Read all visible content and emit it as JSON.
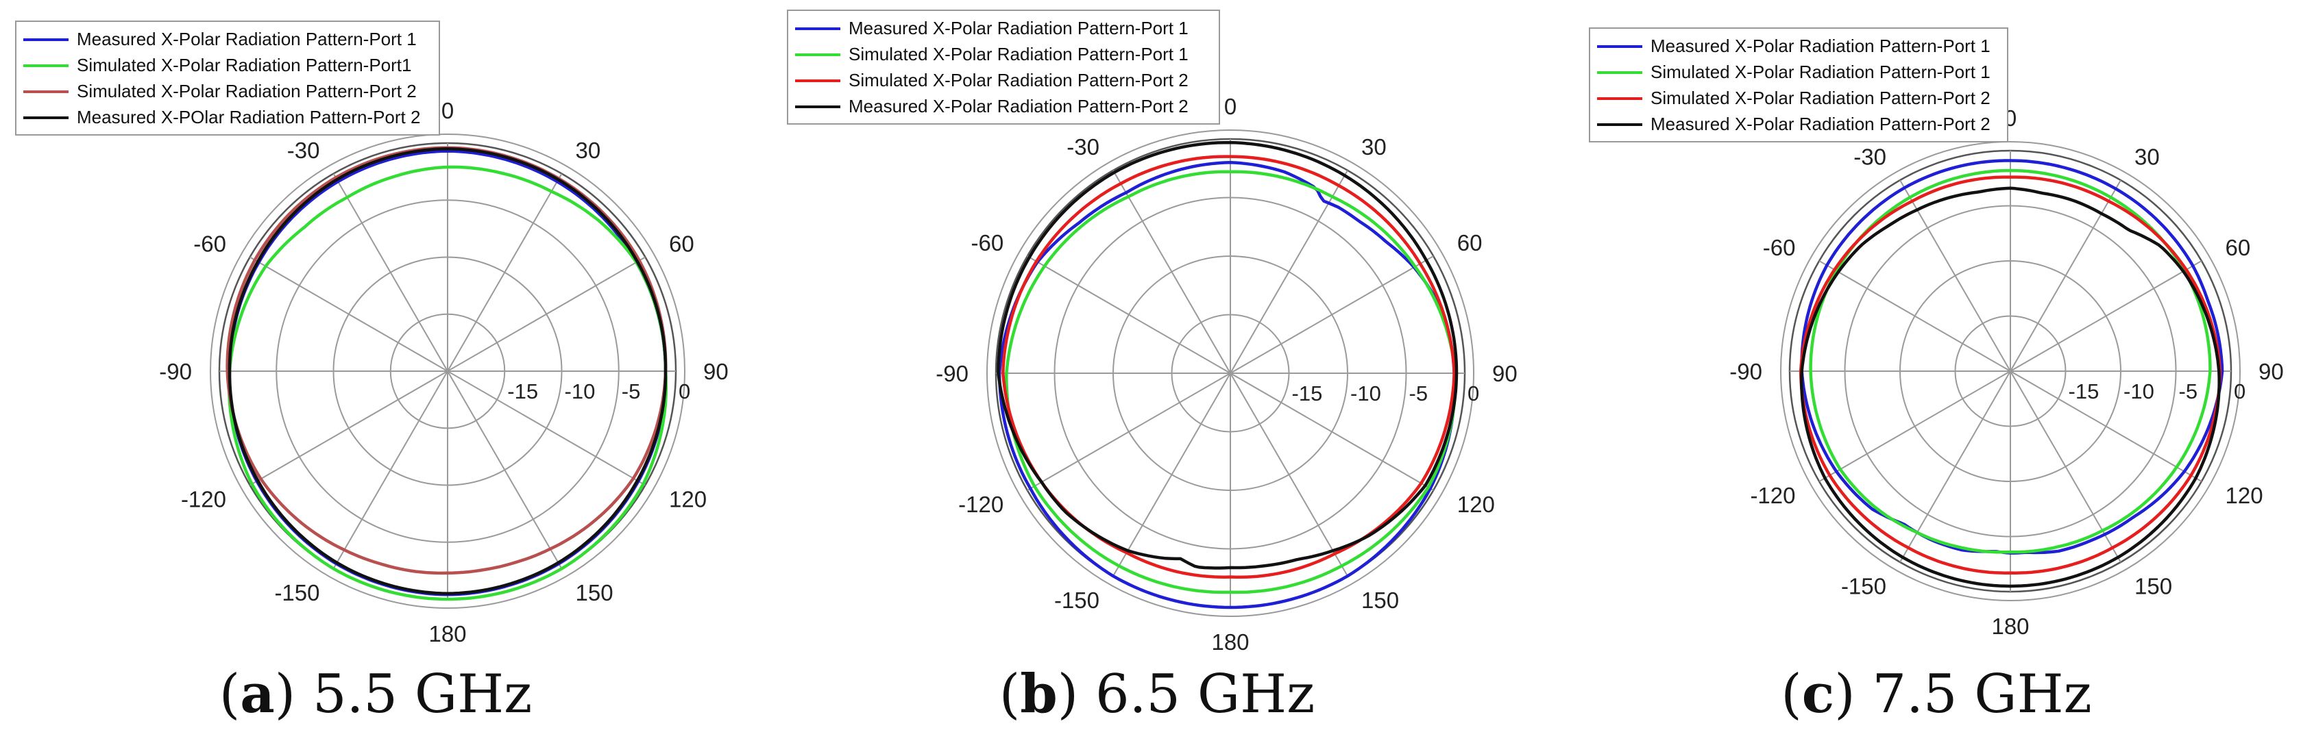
{
  "colors": {
    "blue": "#1f1fd6",
    "green": "#33dd33",
    "red": "#e61e1e",
    "black": "#111111",
    "brown": "#b85050",
    "grid": "#9a9a9a"
  },
  "chart_data": [
    {
      "type": "polar-line",
      "caption": {
        "letter": "a",
        "text": "5.5 GHz"
      },
      "angle_ticks": [
        "0",
        "30",
        "60",
        "90",
        "120",
        "150",
        "180",
        "-150",
        "-120",
        "-90",
        "-60",
        "-30"
      ],
      "radial_ticks": [
        "-15",
        "-10",
        "-5",
        "0"
      ],
      "rlim": [
        -20,
        0
      ],
      "legend": [
        {
          "name": "Measured X-Polar Radiation Pattern-Port 1",
          "color": "blue"
        },
        {
          "name": "Simulated X-Polar Radiation Pattern-Port1",
          "color": "green"
        },
        {
          "name": "Simulated X-Polar Radiation Pattern-Port 2",
          "color": "brown"
        },
        {
          "name": "Measured X-POlar Radiation Pattern-Port 2",
          "color": "black"
        }
      ],
      "series": [
        {
          "name": "Measured X-Polar Radiation Pattern-Port 1",
          "color": "blue",
          "angles": [
            0,
            30,
            60,
            90,
            120,
            150,
            180,
            -150,
            -120,
            -90,
            -60,
            -30
          ],
          "values": [
            -0.7,
            -0.8,
            -0.9,
            -0.9,
            -0.7,
            -0.5,
            -0.4,
            -0.5,
            -0.7,
            -0.9,
            -0.9,
            -0.8
          ]
        },
        {
          "name": "Simulated X-Polar Radiation Pattern-Port1",
          "color": "green",
          "angles": [
            0,
            15,
            30,
            45,
            60,
            90,
            120,
            150,
            180,
            -150,
            -120,
            -90,
            -60,
            -45,
            -30,
            -15
          ],
          "values": [
            -2.1,
            -2.0,
            -1.8,
            -1.3,
            -0.9,
            -0.9,
            -0.2,
            0,
            0,
            0,
            -0.2,
            -0.9,
            -1.6,
            -2.2,
            -2.4,
            -2.3
          ]
        },
        {
          "name": "Simulated X-Polar Radiation Pattern-Port 2",
          "color": "brown",
          "angles": [
            0,
            30,
            60,
            90,
            120,
            150,
            160,
            170,
            180,
            -170,
            -160,
            -150,
            -120,
            -90,
            -60,
            -30
          ],
          "values": [
            -0.4,
            -0.5,
            -0.6,
            -0.9,
            -1.2,
            -2.0,
            -2.2,
            -2.3,
            -2.3,
            -2.2,
            -2.1,
            -1.9,
            -1.1,
            -0.7,
            -0.5,
            -0.4
          ]
        },
        {
          "name": "Measured X-POlar Radiation Pattern-Port 2",
          "color": "black",
          "angles": [
            0,
            30,
            60,
            90,
            120,
            150,
            180,
            -150,
            -120,
            -90,
            -60,
            -30
          ],
          "values": [
            -0.5,
            -0.6,
            -0.8,
            -0.9,
            -0.8,
            -0.6,
            -0.5,
            -0.6,
            -0.8,
            -0.9,
            -0.8,
            -0.6
          ]
        }
      ]
    },
    {
      "type": "polar-line",
      "caption": {
        "letter": "b",
        "text": "6.5 GHz"
      },
      "angle_ticks": [
        "0",
        "30",
        "60",
        "90",
        "120",
        "150",
        "180",
        "-150",
        "-120",
        "-90",
        "-60",
        "-30"
      ],
      "radial_ticks": [
        "-15",
        "-10",
        "-5",
        "0"
      ],
      "rlim": [
        -20,
        0
      ],
      "legend": [
        {
          "name": "Measured X-Polar Radiation Pattern-Port 1",
          "color": "blue"
        },
        {
          "name": "Simulated X-Polar Radiation Pattern-Port 1",
          "color": "green"
        },
        {
          "name": "Simulated X-Polar Radiation Pattern-Port 2",
          "color": "red"
        },
        {
          "name": "Measured X-Polar Radiation Pattern-Port 2",
          "color": "black"
        }
      ],
      "series": [
        {
          "name": "Measured X-Polar Radiation Pattern-Port 1",
          "color": "blue",
          "angles": [
            0,
            15,
            25,
            28,
            33,
            40,
            50,
            60,
            75,
            90,
            120,
            150,
            180,
            -150,
            -120,
            -90,
            -60,
            -45,
            -30,
            -15
          ],
          "values": [
            -2.0,
            -2.2,
            -2.6,
            -3.3,
            -3.1,
            -3.0,
            -2.6,
            -1.9,
            -1.1,
            -0.9,
            -0.3,
            0,
            0,
            0,
            -0.3,
            -0.3,
            -1.0,
            -1.8,
            -2.2,
            -2.1
          ]
        },
        {
          "name": "Simulated X-Polar Radiation Pattern-Port 1",
          "color": "green",
          "angles": [
            0,
            30,
            60,
            90,
            120,
            150,
            180,
            -150,
            -120,
            -90,
            -60,
            -30
          ],
          "values": [
            -2.8,
            -2.6,
            -1.8,
            -0.8,
            -0.5,
            -1.0,
            -1.3,
            -1.0,
            -0.7,
            -0.9,
            -1.7,
            -2.6
          ]
        },
        {
          "name": "Simulated X-Polar Radiation Pattern-Port 2",
          "color": "red",
          "angles": [
            0,
            30,
            60,
            90,
            120,
            150,
            180,
            -150,
            -120,
            -90,
            -60,
            -30
          ],
          "values": [
            -1.5,
            -1.5,
            -1.3,
            -0.9,
            -1.2,
            -2.2,
            -2.6,
            -2.3,
            -1.4,
            -0.6,
            -0.9,
            -1.3
          ]
        },
        {
          "name": "Measured X-Polar Radiation Pattern-Port 2",
          "color": "black",
          "angles": [
            0,
            30,
            60,
            90,
            120,
            140,
            150,
            160,
            170,
            180,
            -170,
            -165,
            -160,
            -150,
            -130,
            -120,
            -90,
            -60,
            -30
          ],
          "values": [
            -0.3,
            -0.5,
            -0.7,
            -0.7,
            -0.8,
            -1.8,
            -2.5,
            -3.1,
            -3.3,
            -3.4,
            -3.2,
            -3.6,
            -3.2,
            -2.5,
            -1.6,
            -1.4,
            -0.2,
            -0.2,
            -0.2
          ]
        }
      ]
    },
    {
      "type": "polar-line",
      "caption": {
        "letter": "c",
        "text": "7.5 GHz"
      },
      "angle_ticks": [
        "0",
        "30",
        "60",
        "90",
        "120",
        "150",
        "180",
        "-150",
        "-120",
        "-90",
        "-60",
        "-30"
      ],
      "radial_ticks": [
        "-15",
        "-10",
        "-5",
        "0"
      ],
      "rlim": [
        -20,
        0
      ],
      "legend": [
        {
          "name": "Measured X-Polar Radiation Pattern-Port 1",
          "color": "blue"
        },
        {
          "name": "Simulated X-Polar Radiation Pattern-Port 1",
          "color": "green"
        },
        {
          "name": "Simulated X-Polar Radiation Pattern-Port 2",
          "color": "red"
        },
        {
          "name": "Measured X-Polar Radiation Pattern-Port 2",
          "color": "black"
        }
      ],
      "series": [
        {
          "name": "Measured X-Polar Radiation Pattern-Port 1",
          "color": "blue",
          "angles": [
            0,
            30,
            60,
            70,
            80,
            90,
            120,
            140,
            155,
            165,
            175,
            180,
            -175,
            -165,
            -155,
            -145,
            -135,
            -120,
            -90,
            -60,
            -30
          ],
          "values": [
            -0.9,
            -0.9,
            -0.9,
            -1.0,
            -0.9,
            -0.8,
            -1.8,
            -2.7,
            -3.0,
            -3.1,
            -3.5,
            -3.5,
            -3.6,
            -3.2,
            -3.1,
            -3.1,
            -2.3,
            -1.8,
            -1.1,
            -0.8,
            -0.8
          ]
        },
        {
          "name": "Simulated X-Polar Radiation Pattern-Port 1",
          "color": "green",
          "angles": [
            0,
            30,
            60,
            90,
            120,
            150,
            165,
            180,
            -165,
            -150,
            -135,
            -120,
            -90,
            -60,
            -30
          ],
          "values": [
            -1.8,
            -1.8,
            -1.8,
            -1.9,
            -2.6,
            -3.3,
            -3.5,
            -3.6,
            -3.4,
            -3.1,
            -2.6,
            -2.2,
            -1.9,
            -1.8,
            -1.8
          ]
        },
        {
          "name": "Simulated X-Polar Radiation Pattern-Port 2",
          "color": "red",
          "angles": [
            0,
            30,
            60,
            90,
            120,
            150,
            180,
            -150,
            -120,
            -90,
            -60,
            -30
          ],
          "values": [
            -2.4,
            -2.2,
            -1.6,
            -1.0,
            -1.1,
            -1.5,
            -1.7,
            -1.5,
            -1.1,
            -1.0,
            -1.6,
            -2.2
          ]
        },
        {
          "name": "Measured X-Polar Radiation Pattern-Port 2",
          "color": "black",
          "angles": [
            0,
            10,
            20,
            30,
            40,
            50,
            60,
            90,
            120,
            150,
            180,
            -150,
            -120,
            -90,
            -60,
            -50,
            -40,
            -30,
            -20,
            -10
          ],
          "values": [
            -3.4,
            -3.6,
            -3.5,
            -3.5,
            -3.3,
            -2.3,
            -1.9,
            -1.1,
            -0.6,
            -0.5,
            -0.5,
            -0.5,
            -0.6,
            -1.1,
            -2.0,
            -2.3,
            -2.8,
            -3.1,
            -3.3,
            -3.5
          ]
        }
      ]
    }
  ]
}
